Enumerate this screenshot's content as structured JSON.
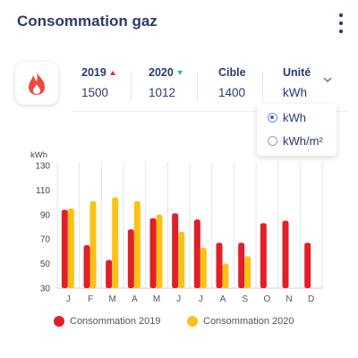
{
  "header": {
    "title": "Consommation gaz",
    "menu_icon": "kebab-menu-icon"
  },
  "summary": {
    "icon": "flame-icon",
    "stats": [
      {
        "label": "2019",
        "value": "1500",
        "trend": "up",
        "trend_color": "#e32c2c"
      },
      {
        "label": "2020",
        "value": "1012",
        "trend": "down",
        "trend_color": "#3bb3a8"
      },
      {
        "label": "Cible",
        "value": "1400"
      },
      {
        "label": "Unité",
        "value": "kWh"
      }
    ]
  },
  "unit_menu": {
    "options": [
      {
        "label": "kWh",
        "selected": true
      },
      {
        "label": "kWh/m²",
        "selected": false
      }
    ]
  },
  "colors": {
    "series_2019": "#e11f26",
    "series_2020": "#fbc216",
    "title": "#2c3a6b"
  },
  "chart_data": {
    "type": "bar",
    "ylabel": "kWh",
    "ylim": [
      30,
      130
    ],
    "yticks": [
      30,
      50,
      70,
      90,
      110,
      130
    ],
    "grid": "vertical",
    "categories": [
      "J",
      "F",
      "M",
      "A",
      "M",
      "J",
      "J",
      "A",
      "S",
      "O",
      "N",
      "D"
    ],
    "series": [
      {
        "name": "Consommation 2019",
        "color": "#e11f26",
        "values": [
          94,
          65,
          53,
          78,
          87,
          91,
          86,
          67,
          67,
          83,
          85,
          67
        ]
      },
      {
        "name": "Consommation 2020",
        "color": "#fbc216",
        "values": [
          95,
          101,
          104,
          101,
          90,
          76,
          63,
          50,
          56,
          null,
          null,
          null
        ]
      }
    ],
    "legend": "bottom"
  }
}
